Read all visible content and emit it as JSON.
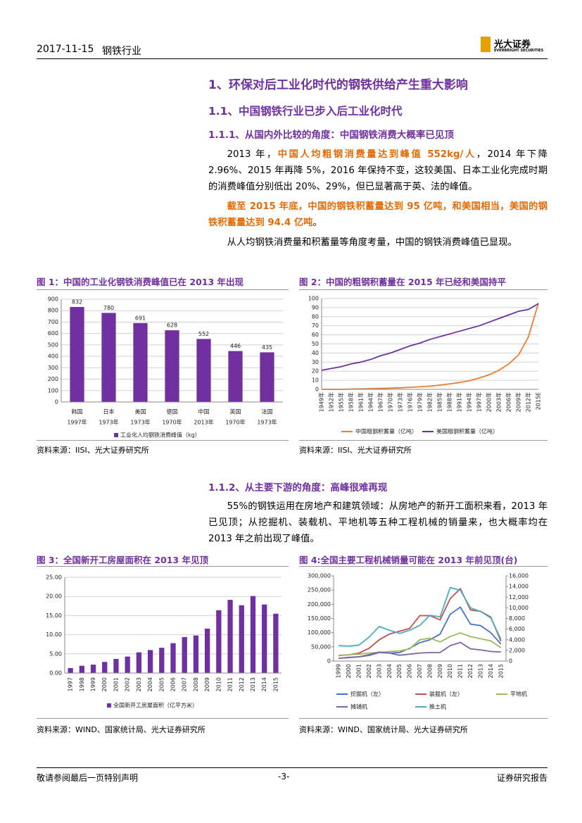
{
  "header": {
    "date": "2017-11-15",
    "industry": "钢铁行业",
    "logo_name": "光大证券",
    "logo_en": "EVERBRIGHT SECURITIES"
  },
  "headings": {
    "h1": "1、环保对后工业化时代的钢铁供给产生重大影响",
    "h2": "1.1、中国钢铁行业已步入后工业化时代",
    "h3a": "1.1.1、从国内外比较的角度：中国钢铁消费大概率已见顶",
    "h3b": "1.1.2、从主要下游的角度：高峰很难再现"
  },
  "paragraphs": [
    [
      "2013 年，",
      "中国人均粗钢消费量达到峰值 552kg/人",
      "，2014 年下降 2.96%、2015 年再降 5%，2016 年保持不变，这较美国、日本工业化完成时期的消费峰值分别低出 20%、29%，但已显著高于英、法的峰值。"
    ],
    [
      "截至 2015 年底，中国的钢铁积蓄量达到 95 亿吨，和美国相当，美国的钢铁积蓄量达到 94.4 亿吨",
      "。"
    ],
    [
      "从人均钢铁消费量和积蓄量等角度考量，中国的钢铁消费峰值已显现。"
    ],
    [
      "55%的钢铁运用在房地产和建筑领域：从房地产的新开工面积来看，2013 年已见顶；从挖掘机、装载机、平地机等五种工程机械的销量来，也大概率均在 2013 年之前出现了峰值。"
    ]
  ],
  "chart_data": [
    {
      "type": "bar",
      "title": "图 1：中国的工业化钢铁消费峰值已在 2013 年出现",
      "source": "资料来源：IISI、光大证券研究所",
      "categories": [
        "韩国",
        "日本",
        "美国",
        "德国",
        "中国",
        "英国",
        "法国"
      ],
      "category_sublabels": [
        "1997年",
        "1973年",
        "1973年",
        "1970年",
        "2013年",
        "1970年",
        "1973年"
      ],
      "series": [
        {
          "name": "工业化人均钢铁消费峰值（kg）",
          "color": "#7030a0",
          "values": [
            832,
            780,
            691,
            628,
            552,
            446,
            435
          ]
        }
      ],
      "data_labels": true,
      "ylim": [
        0,
        900
      ],
      "yticks": [
        0,
        100,
        200,
        300,
        400,
        500,
        600,
        700,
        800,
        900
      ],
      "grid": true
    },
    {
      "type": "line",
      "title": "图 2：中国的粗钢积蓄量在 2015 年已经和美国持平",
      "source": "资料来源：IISI、光大证券研究所",
      "categories": [
        "1949年",
        "1952年",
        "1955年",
        "1958年",
        "1961年",
        "1964年",
        "1967年",
        "1970年",
        "1973年",
        "1976年",
        "1979年",
        "1982年",
        "1985年",
        "1988年",
        "1991年",
        "1994年",
        "1997年",
        "2000年",
        "2003年",
        "2006年",
        "2009年",
        "2012年",
        "2015E"
      ],
      "series": [
        {
          "name": "中国粗钢积蓄量（亿吨）",
          "color": "#ed7d31",
          "values": [
            0,
            0,
            0,
            0.3,
            0.5,
            0.8,
            1,
            1.3,
            1.7,
            2.2,
            2.8,
            3.6,
            4.6,
            6,
            7.5,
            9.5,
            12.5,
            16,
            21,
            28,
            38,
            58,
            95
          ]
        },
        {
          "name": "美国粗钢积蓄量（亿吨）",
          "color": "#7030a0",
          "values": [
            21,
            23,
            25,
            28,
            30,
            33,
            37,
            40,
            44,
            48,
            51,
            55,
            58,
            61,
            64,
            67,
            70,
            74,
            78,
            82,
            86,
            88,
            94.4
          ]
        }
      ],
      "ylim": [
        0,
        100
      ],
      "yticks": [
        0,
        10,
        20,
        30,
        40,
        50,
        60,
        70,
        80,
        90,
        100
      ],
      "grid": true
    },
    {
      "type": "bar",
      "title": "图 3：全国新开工房屋面积在 2013 年见顶",
      "source": "资料来源：WIND、国家统计局、光大证券研究所",
      "categories": [
        "1997",
        "1998",
        "1999",
        "2000",
        "2001",
        "2002",
        "2003",
        "2004",
        "2005",
        "2006",
        "2007",
        "2008",
        "2009",
        "2010",
        "2011",
        "2012",
        "2013",
        "2014",
        "2015"
      ],
      "series": [
        {
          "name": "全国新开工房屋面积（亿平方米）",
          "color": "#7030a0",
          "values": [
            1.3,
            1.9,
            2.2,
            2.9,
            3.7,
            4.3,
            5.4,
            6.0,
            6.6,
            7.8,
            9.4,
            9.8,
            11.6,
            16.4,
            19.1,
            17.7,
            20.1,
            17.9,
            15.5
          ]
        }
      ],
      "ylim": [
        0,
        25
      ],
      "yticks": [
        {
          "value": 0,
          "label": "0.00"
        },
        {
          "value": 5,
          "label": "5.00"
        },
        {
          "value": 10,
          "label": "10.00"
        },
        {
          "value": 15,
          "label": "15.00"
        },
        {
          "value": 20,
          "label": "20.00"
        },
        {
          "value": 25,
          "label": "25.00"
        }
      ],
      "grid": true
    },
    {
      "type": "line",
      "title": "图 4:全国主要工程机械销量可能在 2013 年前见顶(台)",
      "source": "资料来源：WIND、国家统计局、光大证券研究所",
      "categories": [
        "1999",
        "2000",
        "2001",
        "2002",
        "2003",
        "2004",
        "2005",
        "2006",
        "2007",
        "2008",
        "2009",
        "2010",
        "2011",
        "2012",
        "2013",
        "2014",
        "2015"
      ],
      "series": [
        {
          "name": "挖掘机（左）",
          "color": "#4472c4",
          "values": [
            10000,
            12000,
            15000,
            20000,
            30000,
            28000,
            30000,
            45000,
            65000,
            75000,
            95000,
            165000,
            190000,
            130000,
            125000,
            100000,
            60000
          ]
        },
        {
          "name": "装载机（左）",
          "color": "#c0504d",
          "values": [
            20000,
            22000,
            28000,
            45000,
            75000,
            95000,
            105000,
            115000,
            160000,
            160000,
            145000,
            220000,
            255000,
            180000,
            175000,
            155000,
            70000
          ]
        },
        {
          "name": "平地机",
          "color": "#9bbb59",
          "axis": "y2",
          "values": [
            1000,
            1200,
            1300,
            1500,
            1600,
            1800,
            1900,
            2300,
            4000,
            4300,
            3600,
            4600,
            5300,
            4600,
            4200,
            3800,
            2500
          ]
        },
        {
          "name": "摊铺机",
          "color": "#8064a2",
          "axis": "y2",
          "values": [
            500,
            700,
            800,
            1200,
            1700,
            1500,
            1100,
            1300,
            1500,
            1600,
            1600,
            2900,
            3500,
            2300,
            2100,
            1800,
            1700
          ]
        },
        {
          "name": "推土机",
          "color": "#4bacc6",
          "axis": "y2",
          "values": [
            2900,
            2800,
            3000,
            4500,
            6500,
            5800,
            5200,
            5800,
            6700,
            8600,
            8300,
            13800,
            13300,
            10000,
            9300,
            8100,
            4100
          ]
        }
      ],
      "ylim": [
        0,
        300000
      ],
      "yticks": [
        0,
        {
          "value": 50000,
          "label": "50,000"
        },
        {
          "value": 100000,
          "label": "100,000"
        },
        {
          "value": 150000,
          "label": "150,000"
        },
        {
          "value": 200000,
          "label": "200,000"
        },
        {
          "value": 250000,
          "label": "250,000"
        },
        {
          "value": 300000,
          "label": "300,000"
        }
      ],
      "y2lim": [
        0,
        16000
      ],
      "y2ticks": [
        0,
        {
          "value": 2000,
          "label": "2,000"
        },
        {
          "value": 4000,
          "label": "4,000"
        },
        {
          "value": 6000,
          "label": "6,000"
        },
        {
          "value": 8000,
          "label": "8,000"
        },
        {
          "value": 10000,
          "label": "10,000"
        },
        {
          "value": 12000,
          "label": "12,000"
        },
        {
          "value": 14000,
          "label": "14,000"
        },
        {
          "value": 16000,
          "label": "16,000"
        }
      ],
      "grid": false
    }
  ],
  "footer": {
    "left": "敬请参阅最后一页特别声明",
    "page": "-3-",
    "right": "证券研究报告"
  }
}
